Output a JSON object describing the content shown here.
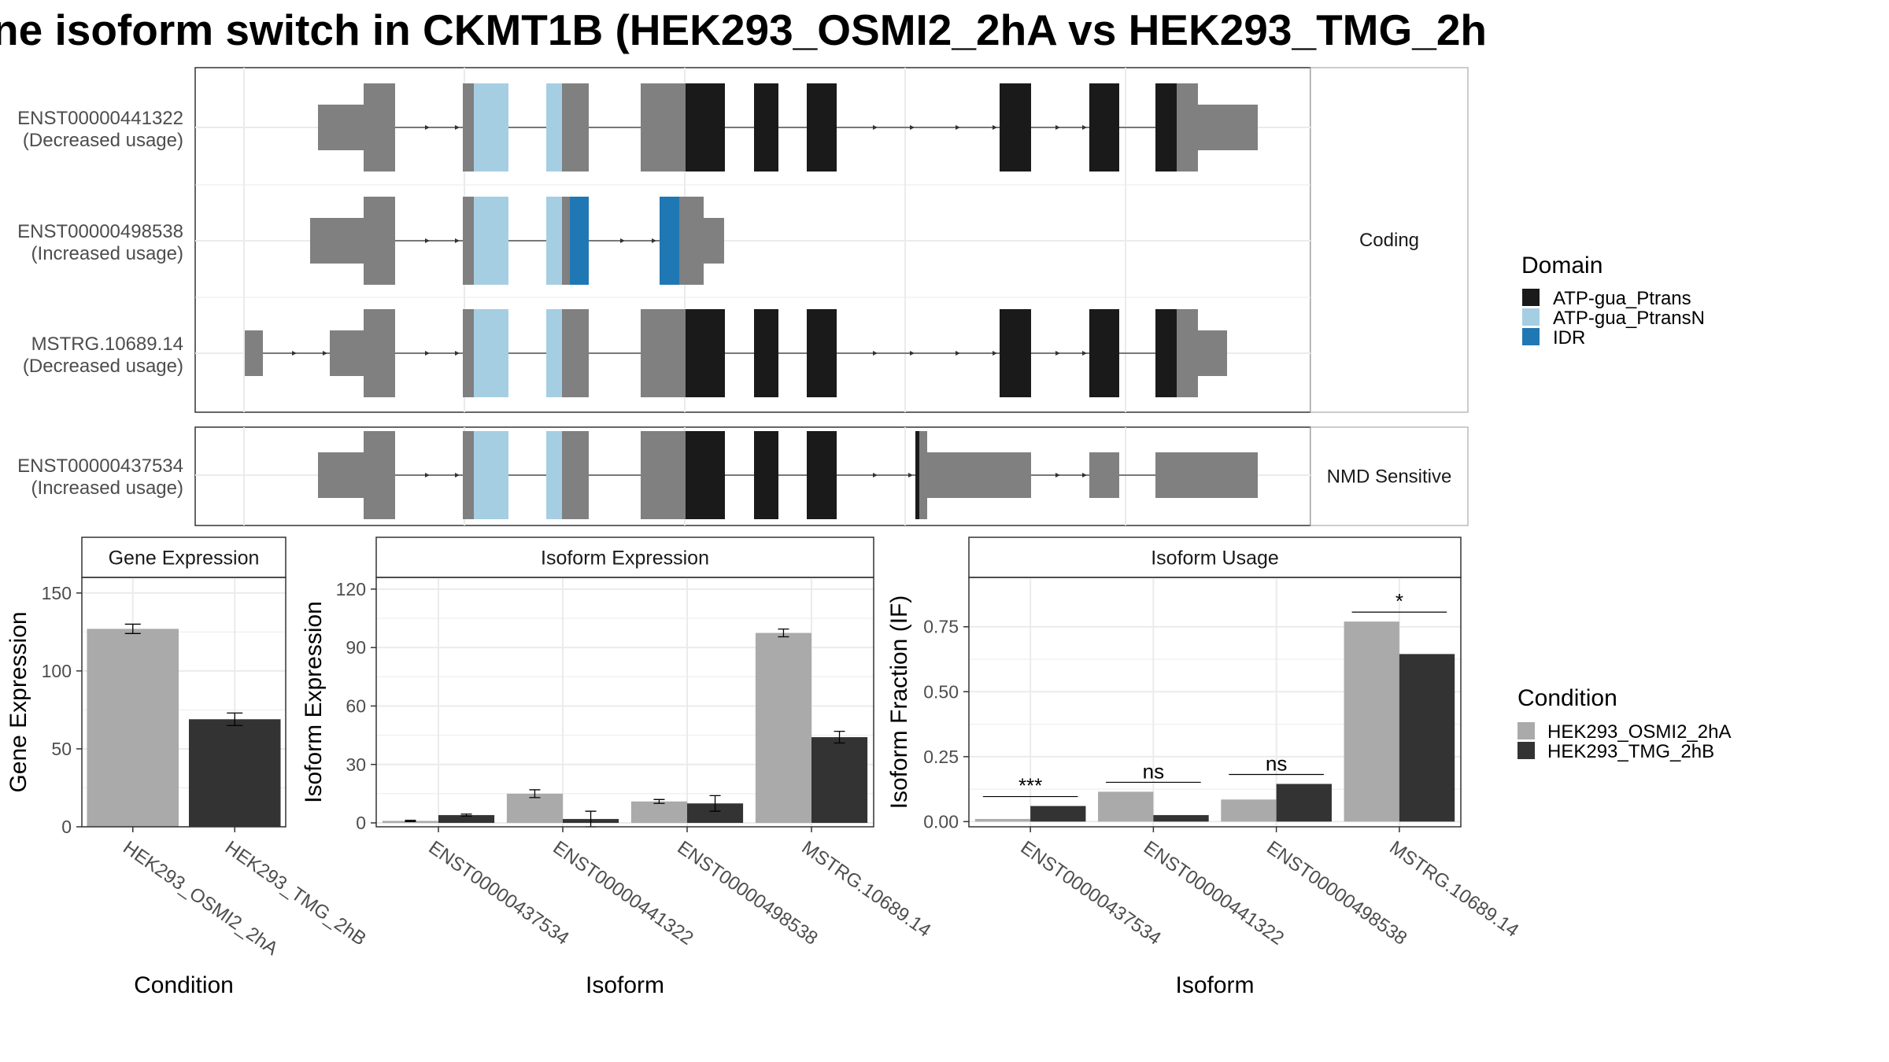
{
  "title": "ne isoform switch in CKMT1B (HEK293_OSMI2_2hA vs HEK293_TMG_2h",
  "colors": {
    "utr": "#808080",
    "intron": "#333333",
    "domain_ATP_gua_Ptrans": "#1a1a1a",
    "domain_ATP_gua_PtransN": "#a6cee3",
    "domain_IDR": "#1f78b4",
    "cond_a": "#aaaaaa",
    "cond_b": "#333333",
    "grid": "#ebebeb",
    "strip_bg": "#ffffff",
    "panel_border": "#333333"
  },
  "panels": {
    "coding_label": "Coding",
    "nmd_label": "NMD Sensitive"
  },
  "transcripts": [
    {
      "id": "ENST00000441322",
      "status": "(Decreased usage)",
      "group": "coding"
    },
    {
      "id": "ENST00000498538",
      "status": "(Increased usage)",
      "group": "coding"
    },
    {
      "id": "MSTRG.10689.14",
      "status": "(Decreased usage)",
      "group": "coding"
    },
    {
      "id": "ENST00000437534",
      "status": "(Increased usage)",
      "group": "nmd"
    }
  ],
  "domain_legend": {
    "title": "Domain",
    "items": [
      "ATP-gua_Ptrans",
      "ATP-gua_PtransN",
      "IDR"
    ]
  },
  "condition_legend": {
    "title": "Condition",
    "items": [
      "HEK293_OSMI2_2hA",
      "HEK293_TMG_2hB"
    ]
  },
  "chart_data": [
    {
      "type": "bar",
      "title": "Gene Expression",
      "xlabel": "Condition",
      "ylabel": "Gene Expression",
      "categories": [
        "HEK293_OSMI2_2hA",
        "HEK293_TMG_2hB"
      ],
      "values": [
        127,
        69
      ],
      "errors": [
        3,
        4
      ],
      "ylim": [
        0,
        160
      ],
      "yticks": [
        0,
        50,
        100,
        150
      ]
    },
    {
      "type": "bar",
      "title": "Isoform Expression",
      "xlabel": "Isoform",
      "ylabel": "Isoform Expression",
      "categories": [
        "ENST00000437534",
        "ENST00000441322",
        "ENST00000498538",
        "MSTRG.10689.14"
      ],
      "series": [
        {
          "name": "HEK293_OSMI2_2hA",
          "values": [
            1,
            15,
            11,
            97.5
          ],
          "errors": [
            0.3,
            2,
            1,
            2
          ]
        },
        {
          "name": "HEK293_TMG_2hB",
          "values": [
            4,
            2,
            10,
            44
          ],
          "errors": [
            0.5,
            4,
            4,
            3
          ]
        }
      ],
      "ylim": [
        -2,
        126
      ],
      "yticks": [
        0,
        30,
        60,
        90,
        120
      ]
    },
    {
      "type": "bar",
      "title": "Isoform Usage",
      "xlabel": "Isoform",
      "ylabel": "Isoform Fraction (IF)",
      "categories": [
        "ENST00000437534",
        "ENST00000441322",
        "ENST00000498538",
        "MSTRG.10689.14"
      ],
      "series": [
        {
          "name": "HEK293_OSMI2_2hA",
          "values": [
            0.01,
            0.115,
            0.085,
            0.77
          ]
        },
        {
          "name": "HEK293_TMG_2hB",
          "values": [
            0.06,
            0.025,
            0.145,
            0.645
          ]
        }
      ],
      "significance": [
        "***",
        "ns",
        "ns",
        "*"
      ],
      "ylim": [
        -0.02,
        0.94
      ],
      "yticks": [
        "0.00",
        "0.25",
        "0.50",
        "0.75"
      ]
    }
  ]
}
